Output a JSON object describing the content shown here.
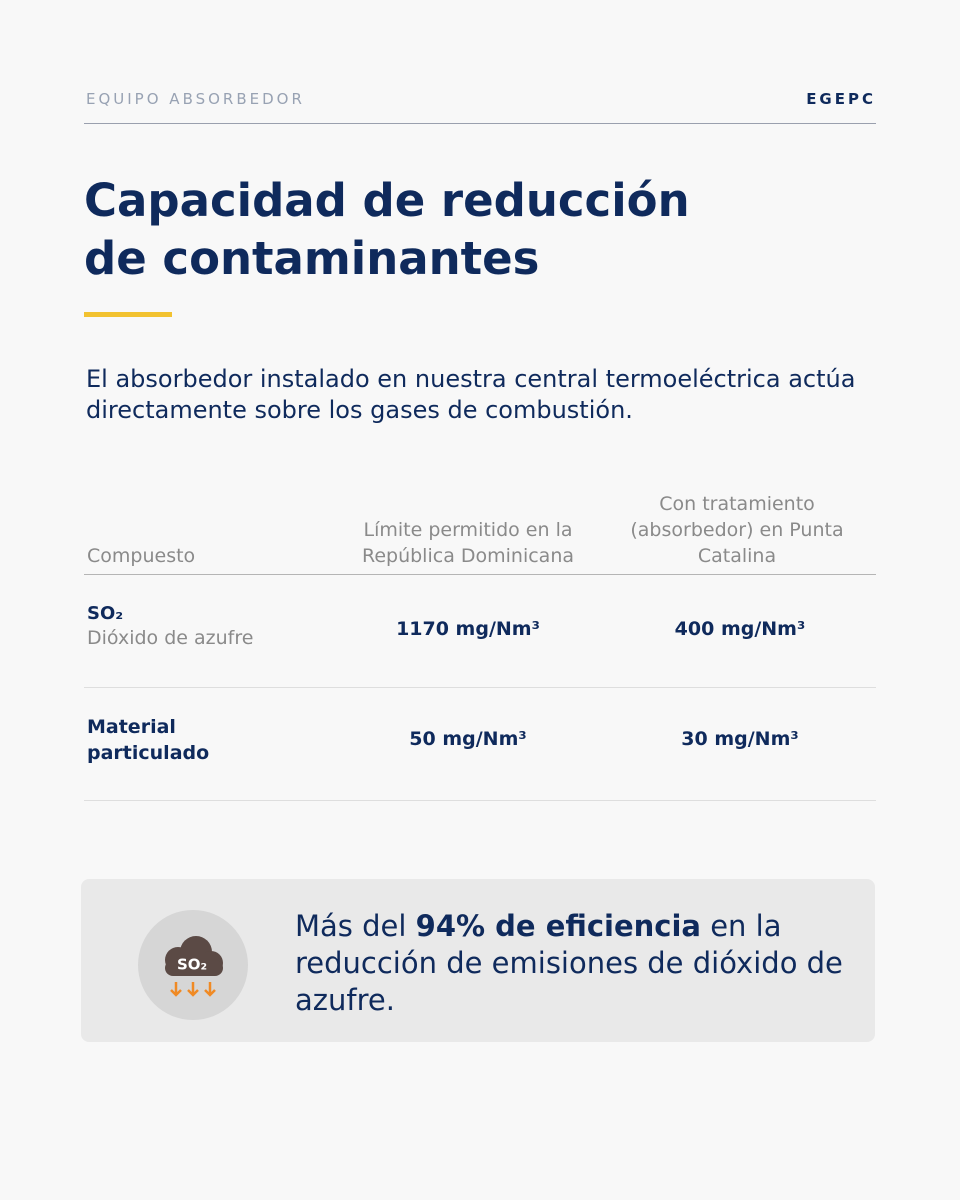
{
  "header": {
    "section": "EQUIPO ABSORBEDOR",
    "brand": "EGEPC"
  },
  "title": [
    "Capacidad de reducción",
    "de contaminantes"
  ],
  "intro": "El absorbedor instalado en nuestra central termoeléctrica actúa directamente sobre los gases de combustión.",
  "table": {
    "headers": [
      "Compuesto",
      "Límite permitido en la República Dominicana",
      "Con tratamiento (absorbedor) en Punta Catalina"
    ],
    "rows": [
      {
        "compound": "SO₂",
        "compound_name": "Dióxido de azufre",
        "limit": "1170 mg/Nm³",
        "treated": "400 mg/Nm³"
      },
      {
        "compound": "Material particulado",
        "limit": "50 mg/Nm³",
        "treated": "30 mg/Nm³"
      }
    ]
  },
  "callout": {
    "icon_label": "SO₂",
    "text_before": "Más del ",
    "highlight": "94% de eficiencia",
    "text_after": " en la reducción de emisiones de dióxido de azufre."
  }
}
